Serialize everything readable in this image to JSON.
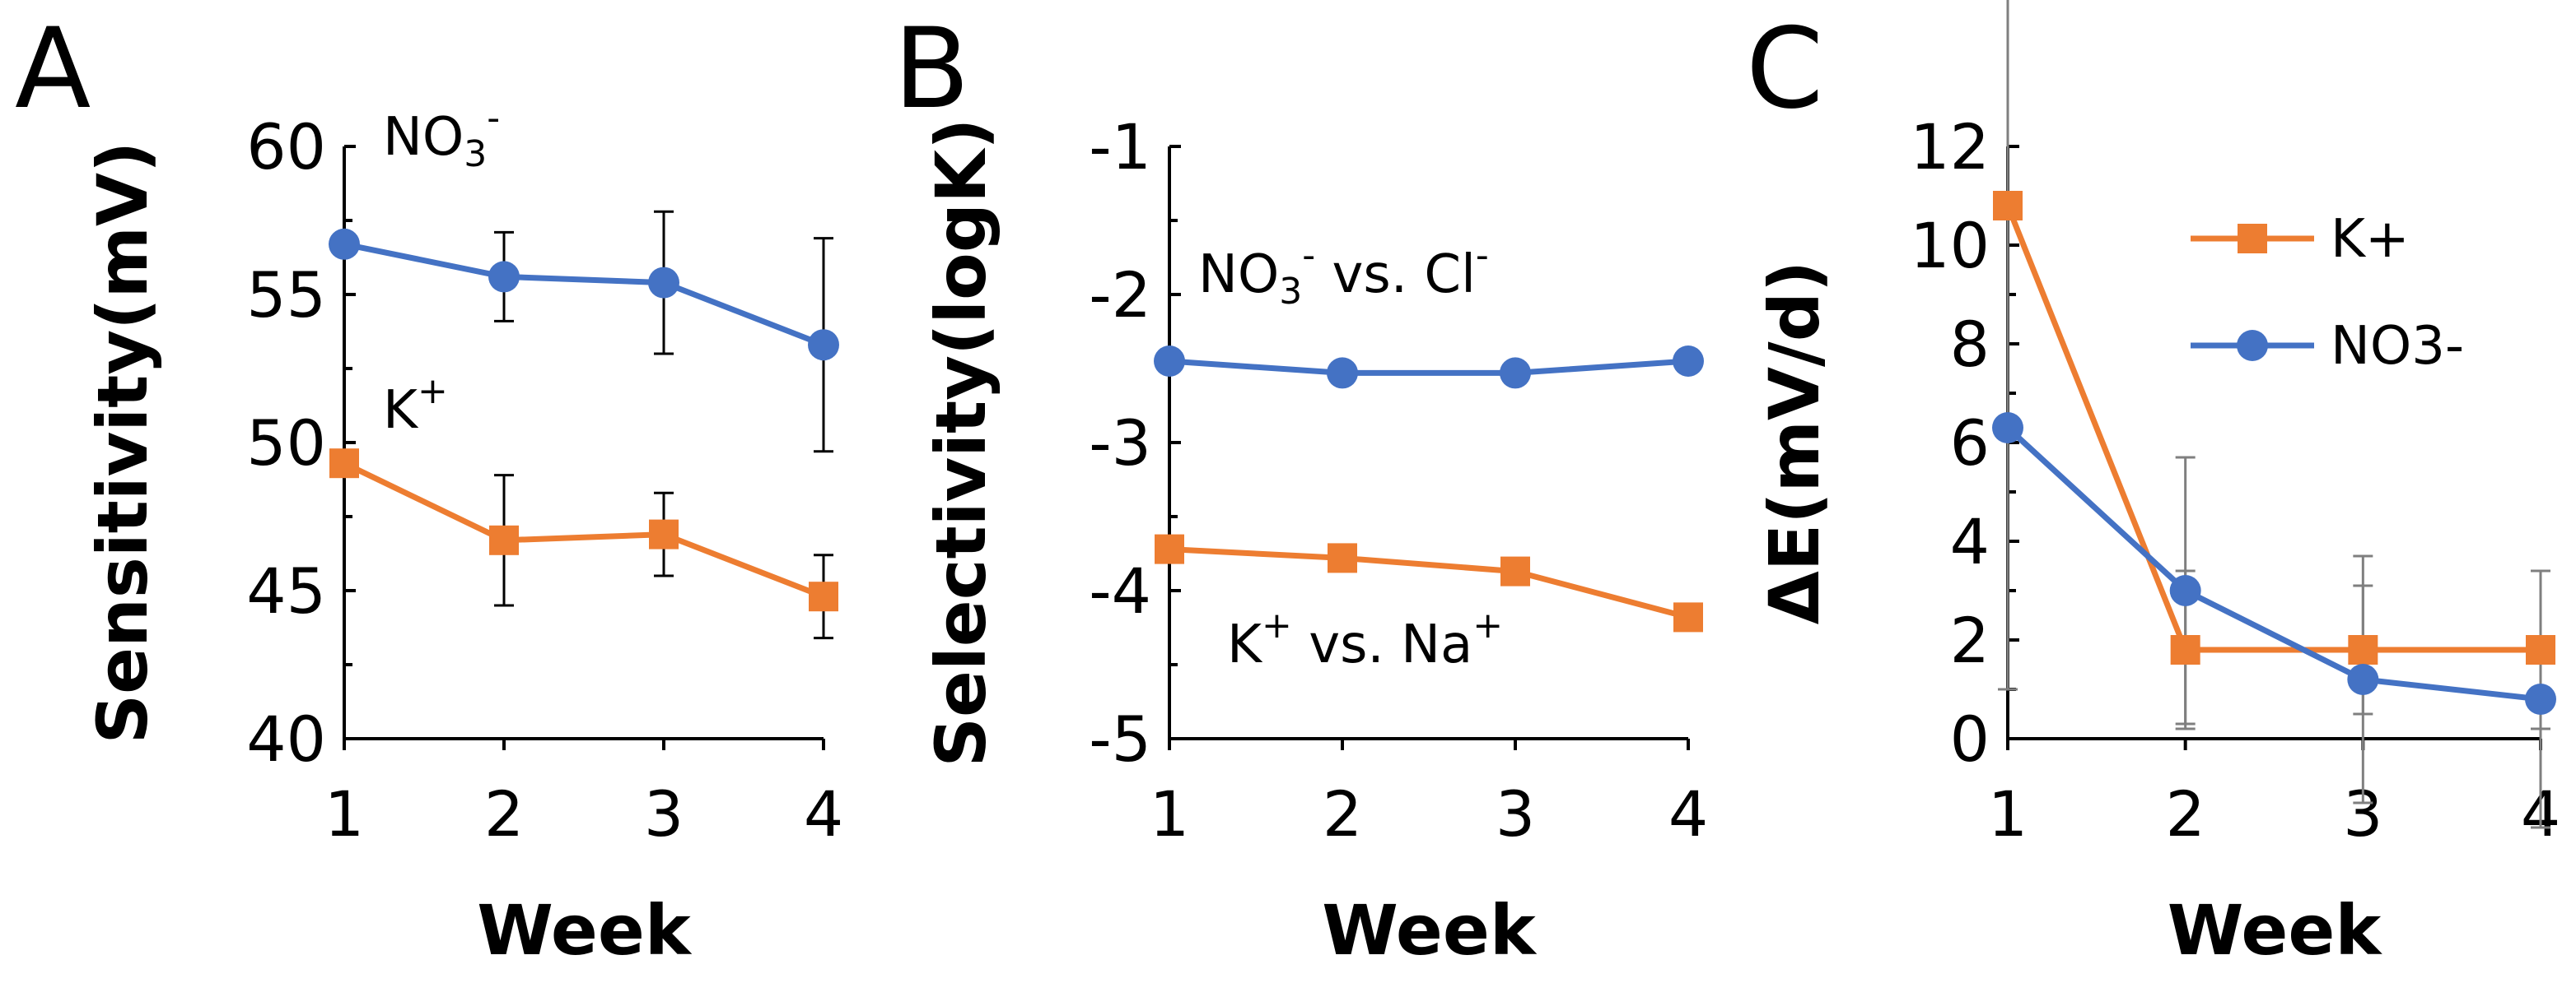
{
  "figure": {
    "panels": [
      "A",
      "B",
      "C"
    ]
  },
  "colors": {
    "orange": "#ED7D31",
    "blue": "#4472C4",
    "axis": "#000000",
    "err_c": "#7f7f7f"
  },
  "chart_data": [
    {
      "id": "A",
      "type": "line",
      "title": "",
      "xlabel": "Week",
      "ylabel": "Sensitivity(mV)",
      "categories": [
        "1",
        "2",
        "3",
        "4"
      ],
      "ylim": [
        40,
        60
      ],
      "yticks": [
        40,
        45,
        50,
        55,
        60
      ],
      "annotations": [
        {
          "base": "NO",
          "sub": "3",
          "sup": "-"
        },
        {
          "base": "K",
          "sup": "+"
        }
      ],
      "series": [
        {
          "name": "NO3-",
          "color": "blue",
          "marker": "circle",
          "values": [
            56.7,
            55.6,
            55.4,
            53.3
          ],
          "errors": [
            [
              0,
              0
            ],
            [
              1.5,
              1.5
            ],
            [
              2.4,
              2.4
            ],
            [
              3.6,
              3.6
            ]
          ]
        },
        {
          "name": "K+",
          "color": "orange",
          "marker": "square",
          "values": [
            49.3,
            46.7,
            46.9,
            44.8
          ],
          "errors": [
            [
              0,
              0
            ],
            [
              2.2,
              2.2
            ],
            [
              1.4,
              1.4
            ],
            [
              1.4,
              1.4
            ]
          ]
        }
      ]
    },
    {
      "id": "B",
      "type": "line",
      "title": "",
      "xlabel": "Week",
      "ylabel": "Selectivity(logK)",
      "categories": [
        "1",
        "2",
        "3",
        "4"
      ],
      "ylim": [
        -5,
        -1
      ],
      "yticks": [
        -5,
        -4,
        -3,
        -2,
        -1
      ],
      "annotations": [
        {
          "base": "NO",
          "sub": "3",
          "sup": "-",
          "rest": " vs. Cl",
          "sup2": "-"
        },
        {
          "base": "K",
          "sup": "+",
          "rest": " vs. Na",
          "sup2": "+"
        }
      ],
      "series": [
        {
          "name": "NO3- vs. Cl-",
          "color": "blue",
          "marker": "circle",
          "values": [
            -2.45,
            -2.53,
            -2.53,
            -2.45
          ]
        },
        {
          "name": "K+ vs. Na+",
          "color": "orange",
          "marker": "square",
          "values": [
            -3.72,
            -3.78,
            -3.87,
            -4.18
          ]
        }
      ]
    },
    {
      "id": "C",
      "type": "line",
      "title": "",
      "xlabel": "Week",
      "ylabel": "ΔE(mV/d)",
      "categories": [
        "1",
        "2",
        "3",
        "4"
      ],
      "ylim": [
        0,
        12
      ],
      "yticks": [
        0,
        2,
        4,
        6,
        8,
        10,
        12
      ],
      "legend": {
        "position": "top-right",
        "entries": [
          "K+",
          "NO3-"
        ]
      },
      "series": [
        {
          "name": "K+",
          "color": "orange",
          "marker": "square",
          "values": [
            10.8,
            1.8,
            1.8,
            1.8
          ],
          "errors": [
            [
              9.8,
              9.8
            ],
            [
              1.6,
              1.6
            ],
            [
              1.3,
              1.3
            ],
            [
              1.6,
              1.6
            ]
          ]
        },
        {
          "name": "NO3-",
          "color": "blue",
          "marker": "circle",
          "values": [
            6.3,
            3.0,
            1.2,
            0.8
          ],
          "errors": [
            [
              0,
              0
            ],
            [
              2.7,
              2.7
            ],
            [
              2.5,
              2.5
            ],
            [
              2.6,
              2.6
            ]
          ]
        }
      ]
    }
  ]
}
